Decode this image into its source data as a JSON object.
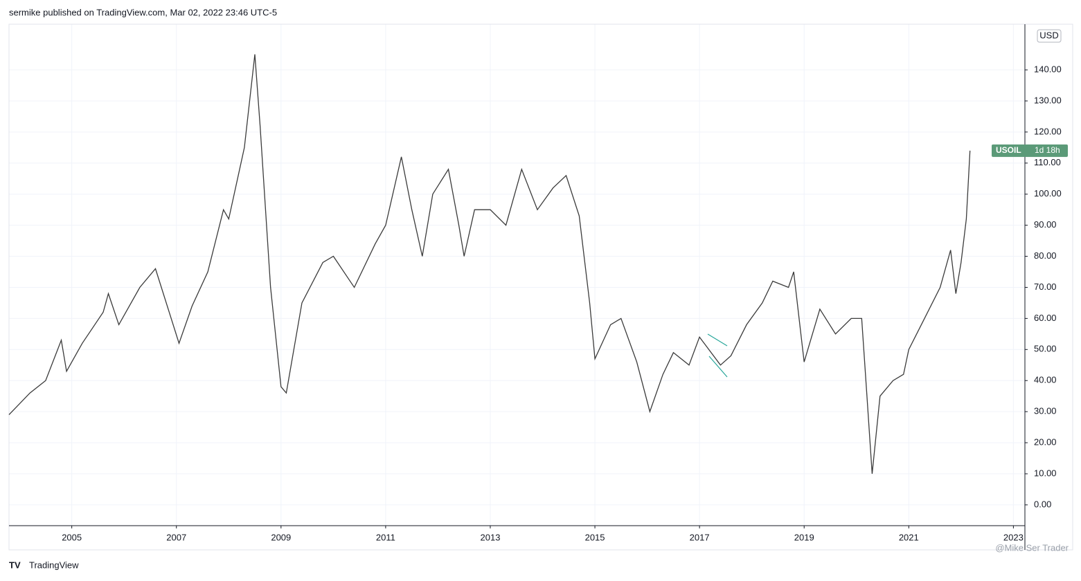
{
  "header": "sermike published on TradingView.com, Mar 02, 2022 23:46 UTC-5",
  "currency": "USD",
  "countdown": "1d 18h",
  "footer": "TradingView",
  "watermark": "@Mike Ser Trader",
  "chart_data": {
    "type": "line",
    "series": [
      {
        "name": "USOIL",
        "color": "#3a3a3a",
        "x": [
          2003.8,
          2004.2,
          2004.5,
          2004.8,
          2004.9,
          2005.2,
          2005.6,
          2005.7,
          2005.9,
          2006.3,
          2006.6,
          2006.9,
          2007.05,
          2007.3,
          2007.6,
          2007.9,
          2008.0,
          2008.3,
          2008.5,
          2008.6,
          2008.8,
          2009.0,
          2009.1,
          2009.4,
          2009.8,
          2010.0,
          2010.4,
          2010.8,
          2011.0,
          2011.3,
          2011.5,
          2011.7,
          2011.9,
          2012.2,
          2012.4,
          2012.5,
          2012.7,
          2013.0,
          2013.3,
          2013.6,
          2013.9,
          2014.2,
          2014.45,
          2014.7,
          2014.9,
          2015.0,
          2015.3,
          2015.5,
          2015.8,
          2016.05,
          2016.3,
          2016.5,
          2016.8,
          2017.0,
          2017.4,
          2017.6,
          2017.9,
          2018.2,
          2018.4,
          2018.7,
          2018.8,
          2019.0,
          2019.3,
          2019.6,
          2019.9,
          2020.1,
          2020.2,
          2020.3,
          2020.45,
          2020.7,
          2020.9,
          2021.0,
          2021.3,
          2021.6,
          2021.8,
          2021.9,
          2022.0,
          2022.1,
          2022.17
        ],
        "values": [
          29,
          36,
          40,
          53,
          43,
          52,
          62,
          68,
          58,
          70,
          76,
          60,
          52,
          64,
          75,
          95,
          92,
          115,
          145,
          122,
          70,
          38,
          36,
          65,
          78,
          80,
          70,
          84,
          90,
          112,
          95,
          80,
          100,
          108,
          90,
          80,
          95,
          95,
          90,
          108,
          95,
          102,
          106,
          93,
          65,
          47,
          58,
          60,
          46,
          30,
          42,
          49,
          45,
          54,
          45,
          48,
          58,
          65,
          72,
          70,
          75,
          46,
          63,
          55,
          60,
          60,
          35,
          10,
          35,
          40,
          42,
          50,
          60,
          70,
          82,
          68,
          78,
          92,
          114
        ]
      }
    ],
    "xlim": [
      2003.8,
      2023.22
    ],
    "xticks": [
      2005,
      2007,
      2009,
      2011,
      2013,
      2015,
      2017,
      2019,
      2021,
      2023
    ],
    "ylim": [
      -6.7,
      154.7
    ],
    "yticks": [
      {
        "value": 0,
        "label": "0.00"
      },
      {
        "value": 10,
        "label": "10.00"
      },
      {
        "value": 20,
        "label": "20.00"
      },
      {
        "value": 30,
        "label": "30.00"
      },
      {
        "value": 40,
        "label": "40.00"
      },
      {
        "value": 50,
        "label": "50.00"
      },
      {
        "value": 60,
        "label": "60.00"
      },
      {
        "value": 70,
        "label": "70.00"
      },
      {
        "value": 80,
        "label": "80.00"
      },
      {
        "value": 90,
        "label": "90.00"
      },
      {
        "value": 100,
        "label": "100.00"
      },
      {
        "value": 110,
        "label": "110.00"
      },
      {
        "value": 120,
        "label": "120.00"
      },
      {
        "value": 130,
        "label": "130.00"
      },
      {
        "value": 140,
        "label": "140.00"
      }
    ],
    "grid": true
  }
}
